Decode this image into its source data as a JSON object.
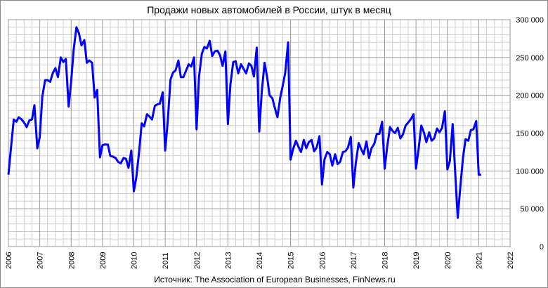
{
  "chart_data": {
    "type": "line",
    "title": "Продажи новых автомобилей в России, штук в месяц",
    "source": "Источник: The Association of European Businesses, FinNews.ru",
    "x_ticks": [
      "2006",
      "2007",
      "2008",
      "2009",
      "2010",
      "2011",
      "2012",
      "2013",
      "2014",
      "2015",
      "2016",
      "2017",
      "2018",
      "2019",
      "2020",
      "2021",
      "2022"
    ],
    "y_ticks": [
      "0",
      "50 000",
      "100 000",
      "150 000",
      "200 000",
      "250 000",
      "300 000"
    ],
    "xlim": [
      2006,
      2022
    ],
    "ylim": [
      0,
      300000
    ],
    "grid": true,
    "legend": "none",
    "series_color": "#0000ff",
    "series": [
      {
        "name": "",
        "x": [
          2006.0,
          2006.08,
          2006.17,
          2006.25,
          2006.33,
          2006.42,
          2006.5,
          2006.58,
          2006.67,
          2006.75,
          2006.83,
          2006.92,
          2007.0,
          2007.08,
          2007.17,
          2007.25,
          2007.33,
          2007.42,
          2007.5,
          2007.58,
          2007.67,
          2007.75,
          2007.83,
          2007.92,
          2008.0,
          2008.08,
          2008.17,
          2008.25,
          2008.33,
          2008.42,
          2008.5,
          2008.58,
          2008.67,
          2008.75,
          2008.83,
          2008.92,
          2009.0,
          2009.08,
          2009.17,
          2009.25,
          2009.33,
          2009.42,
          2009.5,
          2009.58,
          2009.67,
          2009.75,
          2009.83,
          2009.92,
          2010.0,
          2010.08,
          2010.17,
          2010.25,
          2010.33,
          2010.42,
          2010.5,
          2010.58,
          2010.67,
          2010.75,
          2010.83,
          2010.92,
          2011.0,
          2011.08,
          2011.17,
          2011.25,
          2011.33,
          2011.42,
          2011.5,
          2011.58,
          2011.67,
          2011.75,
          2011.83,
          2011.92,
          2012.0,
          2012.08,
          2012.17,
          2012.25,
          2012.33,
          2012.42,
          2012.5,
          2012.58,
          2012.67,
          2012.75,
          2012.83,
          2012.92,
          2013.0,
          2013.08,
          2013.17,
          2013.25,
          2013.33,
          2013.42,
          2013.5,
          2013.58,
          2013.67,
          2013.75,
          2013.83,
          2013.92,
          2014.0,
          2014.08,
          2014.17,
          2014.25,
          2014.33,
          2014.42,
          2014.5,
          2014.58,
          2014.67,
          2014.75,
          2014.83,
          2014.92,
          2015.0,
          2015.08,
          2015.17,
          2015.25,
          2015.33,
          2015.42,
          2015.5,
          2015.58,
          2015.67,
          2015.75,
          2015.83,
          2015.92,
          2016.0,
          2016.08,
          2016.17,
          2016.25,
          2016.33,
          2016.42,
          2016.5,
          2016.58,
          2016.67,
          2016.75,
          2016.83,
          2016.92,
          2017.0,
          2017.08,
          2017.17,
          2017.25,
          2017.33,
          2017.42,
          2017.5,
          2017.58,
          2017.67,
          2017.75,
          2017.83,
          2017.92,
          2018.0,
          2018.08,
          2018.17,
          2018.25,
          2018.33,
          2018.42,
          2018.5,
          2018.58,
          2018.67,
          2018.75,
          2018.83,
          2018.92,
          2019.0,
          2019.08,
          2019.17,
          2019.25,
          2019.33,
          2019.42,
          2019.5,
          2019.58,
          2019.67,
          2019.75,
          2019.83,
          2019.92,
          2020.0,
          2020.08,
          2020.17,
          2020.25,
          2020.33,
          2020.42,
          2020.5,
          2020.58,
          2020.67,
          2020.75,
          2020.83,
          2020.92,
          2021.0,
          2021.08
        ],
        "values": [
          95000,
          130000,
          168000,
          165000,
          171000,
          168000,
          164000,
          158000,
          167000,
          168000,
          187000,
          130000,
          145000,
          198000,
          220000,
          220000,
          218000,
          230000,
          236000,
          224000,
          250000,
          244000,
          248000,
          185000,
          218000,
          260000,
          290000,
          282000,
          266000,
          273000,
          243000,
          246000,
          243000,
          197000,
          207000,
          118000,
          134000,
          135000,
          135000,
          120000,
          119000,
          117000,
          112000,
          110000,
          117000,
          116000,
          104000,
          127000,
          73000,
          92000,
          126000,
          163000,
          159000,
          175000,
          172000,
          168000,
          186000,
          188000,
          189000,
          204000,
          127000,
          165000,
          221000,
          230000,
          233000,
          246000,
          224000,
          224000,
          233000,
          241000,
          238000,
          250000,
          155000,
          225000,
          255000,
          264000,
          262000,
          272000,
          252000,
          258000,
          259000,
          253000,
          239000,
          258000,
          162000,
          214000,
          244000,
          245000,
          229000,
          241000,
          235000,
          229000,
          242000,
          239000,
          225000,
          263000,
          152000,
          205000,
          243000,
          224000,
          200000,
          196000,
          183000,
          171000,
          197000,
          213000,
          230000,
          270000,
          115000,
          129000,
          140000,
          132000,
          125000,
          141000,
          130000,
          138000,
          141000,
          126000,
          131000,
          146000,
          82000,
          115000,
          125000,
          122000,
          107000,
          122000,
          109000,
          112000,
          125000,
          126000,
          131000,
          145000,
          78000,
          110000,
          137000,
          129000,
          122000,
          139000,
          117000,
          130000,
          136000,
          149000,
          149000,
          165000,
          103000,
          132000,
          158000,
          153000,
          150000,
          157000,
          143000,
          148000,
          160000,
          164000,
          168000,
          175000,
          103000,
          128000,
          160000,
          151000,
          138000,
          151000,
          140000,
          143000,
          156000,
          151000,
          157000,
          179000,
          102000,
          113000,
          162000,
          98000,
          38000,
          82000,
          118000,
          142000,
          140000,
          154000,
          155000,
          166000,
          95000,
          95000
        ]
      }
    ]
  }
}
